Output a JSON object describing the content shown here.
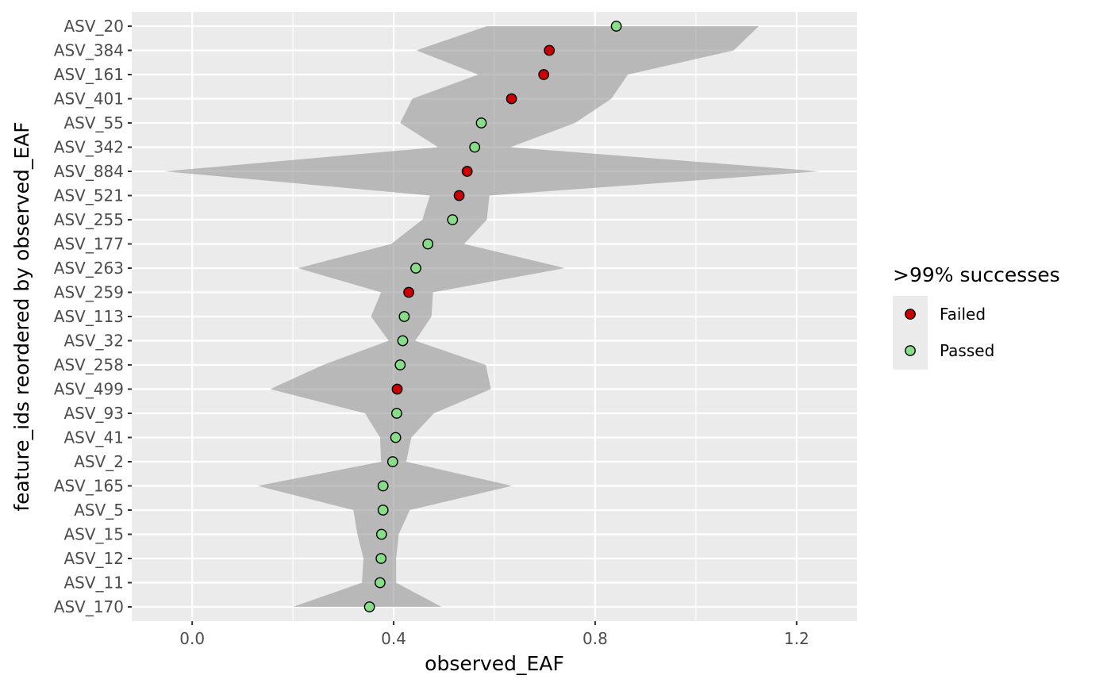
{
  "chart_data": {
    "type": "scatter",
    "title": "",
    "xlabel": "observed_EAF",
    "ylabel": "feature_ids reordered by observed_EAF",
    "xlim": [
      -0.12,
      1.32
    ],
    "x_ticks": [
      0.0,
      0.4,
      0.8,
      1.2
    ],
    "x_tick_labels": [
      "0.0",
      "0.4",
      "0.8",
      "1.2"
    ],
    "grid": true,
    "legend": {
      "title": ">99% successes",
      "placement": "right",
      "entries": [
        {
          "label": "Failed",
          "color": "#cc0000"
        },
        {
          "label": "Passed",
          "color": "#88dd88"
        }
      ]
    },
    "ribbon_color": "#999999",
    "features": [
      {
        "id": "ASV_20",
        "x": 0.842,
        "status": "Passed",
        "low": 0.585,
        "high": 1.125
      },
      {
        "id": "ASV_384",
        "x": 0.709,
        "status": "Failed",
        "low": 0.445,
        "high": 1.075
      },
      {
        "id": "ASV_161",
        "x": 0.698,
        "status": "Failed",
        "low": 0.568,
        "high": 0.865
      },
      {
        "id": "ASV_401",
        "x": 0.634,
        "status": "Failed",
        "low": 0.437,
        "high": 0.832
      },
      {
        "id": "ASV_55",
        "x": 0.574,
        "status": "Passed",
        "low": 0.413,
        "high": 0.76
      },
      {
        "id": "ASV_342",
        "x": 0.561,
        "status": "Passed",
        "low": 0.488,
        "high": 0.632
      },
      {
        "id": "ASV_884",
        "x": 0.546,
        "status": "Failed",
        "low": -0.055,
        "high": 1.245
      },
      {
        "id": "ASV_521",
        "x": 0.53,
        "status": "Failed",
        "low": 0.472,
        "high": 0.59
      },
      {
        "id": "ASV_255",
        "x": 0.517,
        "status": "Passed",
        "low": 0.457,
        "high": 0.585
      },
      {
        "id": "ASV_177",
        "x": 0.468,
        "status": "Passed",
        "low": 0.395,
        "high": 0.54
      },
      {
        "id": "ASV_263",
        "x": 0.444,
        "status": "Passed",
        "low": 0.21,
        "high": 0.74
      },
      {
        "id": "ASV_259",
        "x": 0.43,
        "status": "Failed",
        "low": 0.375,
        "high": 0.478
      },
      {
        "id": "ASV_113",
        "x": 0.421,
        "status": "Passed",
        "low": 0.355,
        "high": 0.475
      },
      {
        "id": "ASV_32",
        "x": 0.418,
        "status": "Passed",
        "low": 0.39,
        "high": 0.443
      },
      {
        "id": "ASV_258",
        "x": 0.413,
        "status": "Passed",
        "low": 0.26,
        "high": 0.583
      },
      {
        "id": "ASV_499",
        "x": 0.407,
        "status": "Failed",
        "low": 0.155,
        "high": 0.593
      },
      {
        "id": "ASV_93",
        "x": 0.406,
        "status": "Passed",
        "low": 0.343,
        "high": 0.48
      },
      {
        "id": "ASV_41",
        "x": 0.404,
        "status": "Passed",
        "low": 0.373,
        "high": 0.435
      },
      {
        "id": "ASV_2",
        "x": 0.398,
        "status": "Passed",
        "low": 0.375,
        "high": 0.425
      },
      {
        "id": "ASV_165",
        "x": 0.379,
        "status": "Passed",
        "low": 0.13,
        "high": 0.635
      },
      {
        "id": "ASV_5",
        "x": 0.379,
        "status": "Passed",
        "low": 0.32,
        "high": 0.432
      },
      {
        "id": "ASV_15",
        "x": 0.376,
        "status": "Passed",
        "low": 0.328,
        "high": 0.41
      },
      {
        "id": "ASV_12",
        "x": 0.375,
        "status": "Passed",
        "low": 0.34,
        "high": 0.405
      },
      {
        "id": "ASV_11",
        "x": 0.373,
        "status": "Passed",
        "low": 0.337,
        "high": 0.405
      },
      {
        "id": "ASV_170",
        "x": 0.352,
        "status": "Passed",
        "low": 0.2,
        "high": 0.495
      }
    ]
  }
}
